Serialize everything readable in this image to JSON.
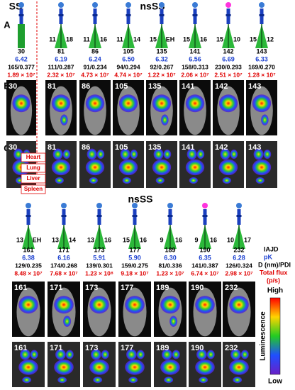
{
  "header": {
    "left": "SS",
    "right": "nsSS"
  },
  "panels": {
    "a": "A",
    "b": "B",
    "c": "C"
  },
  "organs": [
    "Heart",
    "Lung",
    "Liver",
    "Spleen"
  ],
  "group1": {
    "compounds": [
      {
        "id": "30",
        "pk": "6.42",
        "size_pdi": "165/0.377",
        "flux": "1.89 × 10⁷",
        "head_color": "#3a7bd5"
      },
      {
        "id": "81",
        "pk": "6.19",
        "size_pdi": "111/0.287",
        "flux": "2.32 × 10⁷",
        "arm_left": "11",
        "arm_right": "18",
        "head_color": "#3a7bd5"
      },
      {
        "id": "86",
        "pk": "6.24",
        "size_pdi": "91/0.234",
        "flux": "4.73 × 10⁷",
        "arm_left": "11",
        "arm_right": "16",
        "head_color": "#3a7bd5"
      },
      {
        "id": "105",
        "pk": "6.50",
        "size_pdi": "94/0.294",
        "flux": "4.74 × 10⁷",
        "arm_left": "11",
        "arm_right": "14",
        "head_color": "#3a7bd5"
      },
      {
        "id": "135",
        "pk": "6.32",
        "size_pdi": "92/0.267",
        "flux": "1.22 × 10⁷",
        "arm_left": "15",
        "arm_right": "EH",
        "head_color": "#3a7bd5"
      },
      {
        "id": "141",
        "pk": "6.56",
        "size_pdi": "158/0.313",
        "flux": "2.06 × 10⁷",
        "arm_left": "15",
        "arm_right": "16",
        "head_color": "#3a7bd5"
      },
      {
        "id": "142",
        "pk": "6.69",
        "size_pdi": "230/0.293",
        "flux": "2.51 × 10⁷",
        "arm_left": "15",
        "arm_right": "10",
        "head_color": "#ff33dd"
      },
      {
        "id": "143",
        "pk": "6.33",
        "size_pdi": "169/0.270",
        "flux": "1.28 × 10⁷",
        "arm_left": "15",
        "arm_right": "12",
        "head_color": "#3a7bd5"
      }
    ]
  },
  "group2": {
    "title": "nsSS",
    "compounds": [
      {
        "id": "161",
        "pk": "6.38",
        "size_pdi": "129/0.235",
        "flux": "8.48 × 10⁷",
        "arm_left": "13",
        "arm_right": "EH",
        "head_color": "#3a7bd5"
      },
      {
        "id": "171",
        "pk": "6.16",
        "size_pdi": "174/0.268",
        "flux": "7.68 × 10⁷",
        "arm_left": "13",
        "arm_right": "14",
        "head_color": "#3a7bd5"
      },
      {
        "id": "173",
        "pk": "5.91",
        "size_pdi": "139/0.301",
        "flux": "1.23 × 10⁸",
        "arm_left": "13",
        "arm_right": "16",
        "head_color": "#3a7bd5"
      },
      {
        "id": "177",
        "pk": "5.90",
        "size_pdi": "159/0.275",
        "flux": "9.18 × 10⁷",
        "arm_left": "15",
        "arm_right": "16",
        "head_color": "#3a7bd5"
      },
      {
        "id": "189",
        "pk": "6.30",
        "size_pdi": "81/0.336",
        "flux": "1.23 × 10⁷",
        "arm_left": "9",
        "arm_right": "16",
        "head_color": "#3a7bd5"
      },
      {
        "id": "190",
        "pk": "6.35",
        "size_pdi": "141/0.387",
        "flux": "6.74 × 10⁷",
        "arm_left": "9",
        "arm_right": "16",
        "head_color": "#ff33dd"
      },
      {
        "id": "232",
        "pk": "6.28",
        "size_pdi": "126/0.324",
        "flux": "2.98 × 10⁷",
        "arm_left": "10",
        "arm_right": "17",
        "head_color": "#3a7bd5"
      }
    ]
  },
  "legend": {
    "id": "IAJD",
    "pk": "pK",
    "size": "D (nm)/PDI",
    "flux": "Total flux",
    "unit": "(p/s)"
  },
  "colorbar": {
    "high": "High",
    "low": "Low",
    "title": "Luminescence"
  }
}
